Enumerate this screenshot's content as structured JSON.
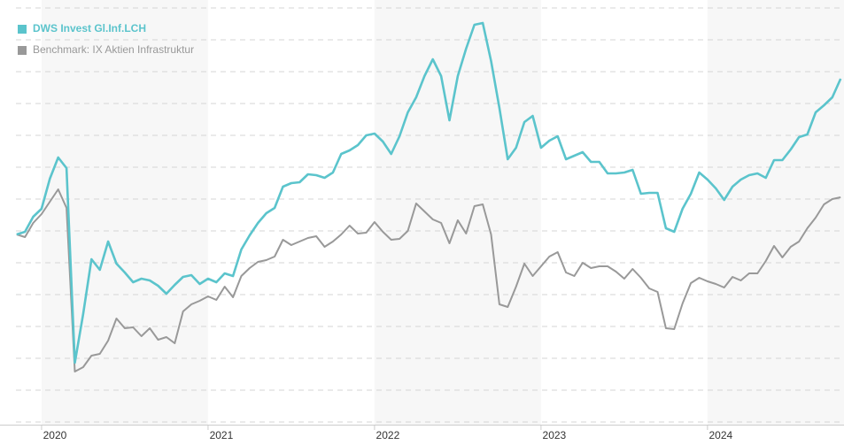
{
  "chart_data": {
    "type": "line",
    "x": [
      2019.85,
      2019.9,
      2019.95,
      2020,
      2020.05,
      2020.1,
      2020.15,
      2020.2,
      2020.25,
      2020.3,
      2020.35,
      2020.4,
      2020.45,
      2020.5,
      2020.55,
      2020.6,
      2020.65,
      2020.7,
      2020.75,
      2020.8,
      2020.85,
      2020.9,
      2020.95,
      2021,
      2021.05,
      2021.1,
      2021.15,
      2021.2,
      2021.25,
      2021.3,
      2021.35,
      2021.4,
      2021.45,
      2021.5,
      2021.55,
      2021.6,
      2021.65,
      2021.7,
      2021.75,
      2021.8,
      2021.85,
      2021.9,
      2021.95,
      2022,
      2022.05,
      2022.1,
      2022.15,
      2022.2,
      2022.25,
      2022.3,
      2022.35,
      2022.4,
      2022.45,
      2022.5,
      2022.55,
      2022.6,
      2022.65,
      2022.7,
      2022.75,
      2022.8,
      2022.85,
      2022.9,
      2022.95,
      2023,
      2023.05,
      2023.1,
      2023.15,
      2023.2,
      2023.25,
      2023.3,
      2023.35,
      2023.4,
      2023.45,
      2023.5,
      2023.55,
      2023.6,
      2023.65,
      2023.7,
      2023.75,
      2023.8,
      2023.85,
      2023.9,
      2023.95,
      2024,
      2024.05,
      2024.1,
      2024.15,
      2024.2,
      2024.25,
      2024.3,
      2024.35,
      2024.4,
      2024.45,
      2024.5,
      2024.55,
      2024.6,
      2024.65,
      2024.7,
      2024.75,
      2024.8
    ],
    "series": [
      {
        "name": "DWS Invest Gl.Inf.LCH",
        "color": "#5bc4cc",
        "values": [
          212,
          215,
          232,
          241,
          275,
          299,
          287,
          67,
          122,
          184,
          172,
          204,
          179,
          169,
          158,
          162,
          160,
          154,
          145,
          155,
          164,
          166,
          156,
          162,
          158,
          168,
          165,
          195,
          211,
          225,
          236,
          242,
          266,
          270,
          271,
          280,
          279,
          276,
          282,
          303,
          307,
          313,
          324,
          326,
          317,
          303,
          323,
          350,
          367,
          391,
          410,
          391,
          341,
          391,
          422,
          449,
          451,
          408,
          355,
          297,
          310,
          339,
          346,
          310,
          318,
          323,
          297,
          301,
          305,
          294,
          294,
          281,
          281,
          282,
          285,
          258,
          259,
          259,
          219,
          215,
          241,
          258,
          282,
          274,
          264,
          251,
          266,
          274,
          279,
          281,
          276,
          296,
          296,
          308,
          322,
          325,
          350,
          358,
          367,
          388
        ]
      },
      {
        "name": "Benchmark: IX Aktien Infrastruktur",
        "color": "#999999",
        "values": [
          212,
          209,
          225,
          235,
          249,
          263,
          242,
          57,
          62,
          75,
          77,
          92,
          117,
          106,
          107,
          97,
          106,
          93,
          96,
          89,
          125,
          133,
          137,
          142,
          138,
          153,
          141,
          165,
          174,
          181,
          183,
          187,
          206,
          200,
          204,
          208,
          210,
          198,
          204,
          212,
          222,
          213,
          214,
          226,
          215,
          206,
          207,
          216,
          247,
          238,
          229,
          225,
          202,
          228,
          213,
          244,
          246,
          212,
          133,
          130,
          153,
          179,
          165,
          176,
          187,
          192,
          169,
          165,
          180,
          174,
          176,
          176,
          170,
          162,
          173,
          163,
          151,
          147,
          106,
          105,
          134,
          157,
          163,
          159,
          156,
          152,
          164,
          160,
          168,
          168,
          182,
          199,
          186,
          198,
          204,
          219,
          231,
          246,
          252,
          254
        ]
      }
    ],
    "xlim": [
      2019.846,
      2024.82
    ],
    "xticks": [
      2020,
      2021,
      2022,
      2023,
      2024
    ],
    "ylim": [
      -8,
      472
    ],
    "yticks": [
      0,
      36,
      72,
      108,
      144,
      180,
      216,
      252,
      288,
      324,
      360,
      396,
      432,
      468
    ],
    "grid": true
  }
}
